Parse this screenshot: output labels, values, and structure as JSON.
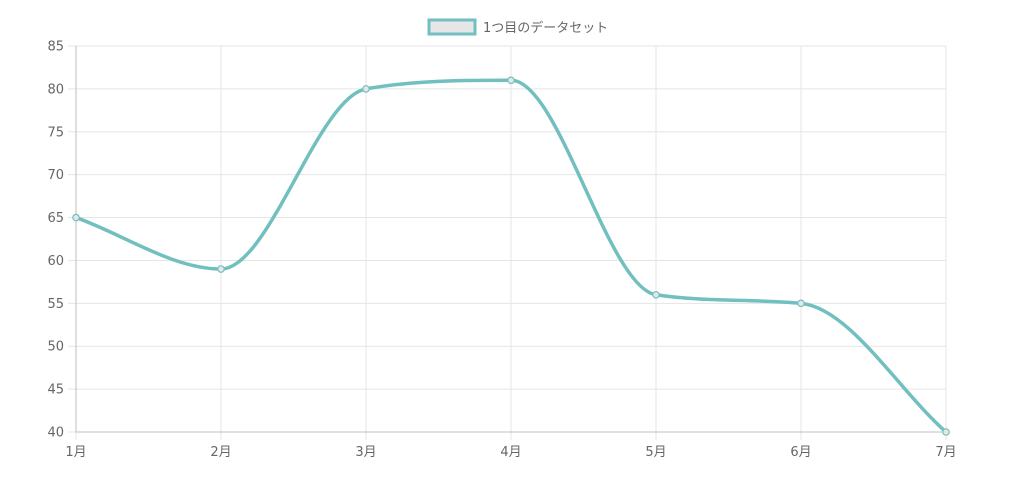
{
  "chart_data": {
    "type": "line",
    "categories": [
      "1月",
      "2月",
      "3月",
      "4月",
      "5月",
      "6月",
      "7月"
    ],
    "series": [
      {
        "name": "1つ目のデータセット",
        "values": [
          65,
          59,
          80,
          81,
          56,
          55,
          40
        ]
      }
    ],
    "ylim": [
      40,
      85
    ],
    "yticks": [
      40,
      45,
      50,
      55,
      60,
      65,
      70,
      75,
      80,
      85
    ],
    "grid": true,
    "legend_position": "top",
    "colors": {
      "line": "#72bfc0",
      "fill": "#e6e6e6",
      "grid": "#e5e5e5",
      "text": "#666666"
    }
  }
}
